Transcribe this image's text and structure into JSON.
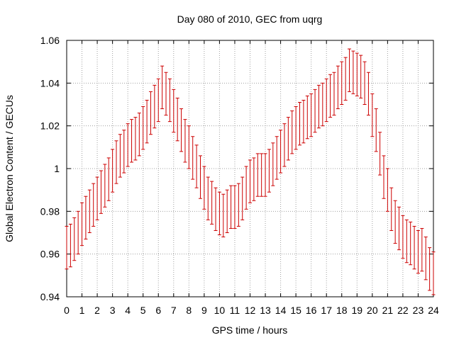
{
  "chart_data": {
    "type": "errorbar",
    "title": "Day 080 of 2010, GEC from uqrg",
    "xlabel": "GPS time / hours",
    "ylabel": "Global Electron Content / GECUs",
    "xlim": [
      0,
      24
    ],
    "ylim": [
      0.94,
      1.06
    ],
    "x_ticks": [
      "0",
      "1",
      "2",
      "3",
      "4",
      "5",
      "6",
      "7",
      "8",
      "9",
      "10",
      "11",
      "12",
      "13",
      "14",
      "15",
      "16",
      "17",
      "18",
      "19",
      "20",
      "21",
      "22",
      "23",
      "24"
    ],
    "y_ticks": [
      "0.94",
      "0.96",
      "0.98",
      "1",
      "1.02",
      "1.04",
      "1.06"
    ],
    "grid": true,
    "color": "#cc0000",
    "error": 0.01,
    "series": [
      {
        "x": [
          0.0,
          0.25,
          0.5,
          0.75,
          1.0,
          1.25,
          1.5,
          1.75,
          2.0,
          2.25,
          2.5,
          2.75,
          3.0,
          3.25,
          3.5,
          3.75,
          4.0,
          4.25,
          4.5,
          4.75,
          5.0,
          5.25,
          5.5,
          5.75,
          6.0,
          6.25,
          6.5,
          6.75,
          7.0,
          7.25,
          7.5,
          7.75,
          8.0,
          8.25,
          8.5,
          8.75,
          9.0,
          9.25,
          9.5,
          9.75,
          10.0,
          10.25,
          10.5,
          10.75,
          11.0,
          11.25,
          11.5,
          11.75,
          12.0,
          12.25,
          12.5,
          12.75,
          13.0,
          13.25,
          13.5,
          13.75,
          14.0,
          14.25,
          14.5,
          14.75,
          15.0,
          15.25,
          15.5,
          15.75,
          16.0,
          16.25,
          16.5,
          16.75,
          17.0,
          17.25,
          17.5,
          17.75,
          18.0,
          18.25,
          18.5,
          18.75,
          19.0,
          19.25,
          19.5,
          19.75,
          20.0,
          20.25,
          20.5,
          20.75,
          21.0,
          21.25,
          21.5,
          21.75,
          22.0,
          22.25,
          22.5,
          22.75,
          23.0,
          23.25,
          23.5,
          23.75,
          24.0
        ],
        "y": [
          0.963,
          0.964,
          0.967,
          0.97,
          0.974,
          0.977,
          0.98,
          0.983,
          0.986,
          0.989,
          0.992,
          0.995,
          0.999,
          1.003,
          1.006,
          1.008,
          1.011,
          1.013,
          1.014,
          1.016,
          1.019,
          1.022,
          1.026,
          1.029,
          1.032,
          1.038,
          1.035,
          1.032,
          1.027,
          1.023,
          1.018,
          1.013,
          1.01,
          1.005,
          1.001,
          0.996,
          0.991,
          0.986,
          0.984,
          0.981,
          0.979,
          0.978,
          0.98,
          0.982,
          0.982,
          0.983,
          0.986,
          0.991,
          0.994,
          0.995,
          0.997,
          0.997,
          0.997,
          0.999,
          1.002,
          1.005,
          1.008,
          1.011,
          1.014,
          1.017,
          1.019,
          1.021,
          1.022,
          1.024,
          1.025,
          1.027,
          1.029,
          1.03,
          1.032,
          1.034,
          1.035,
          1.038,
          1.04,
          1.042,
          1.046,
          1.045,
          1.044,
          1.043,
          1.04,
          1.035,
          1.025,
          1.018,
          1.007,
          0.996,
          0.99,
          0.981,
          0.975,
          0.972,
          0.968,
          0.966,
          0.965,
          0.963,
          0.961,
          0.962,
          0.958,
          0.953,
          0.951
        ]
      }
    ]
  }
}
